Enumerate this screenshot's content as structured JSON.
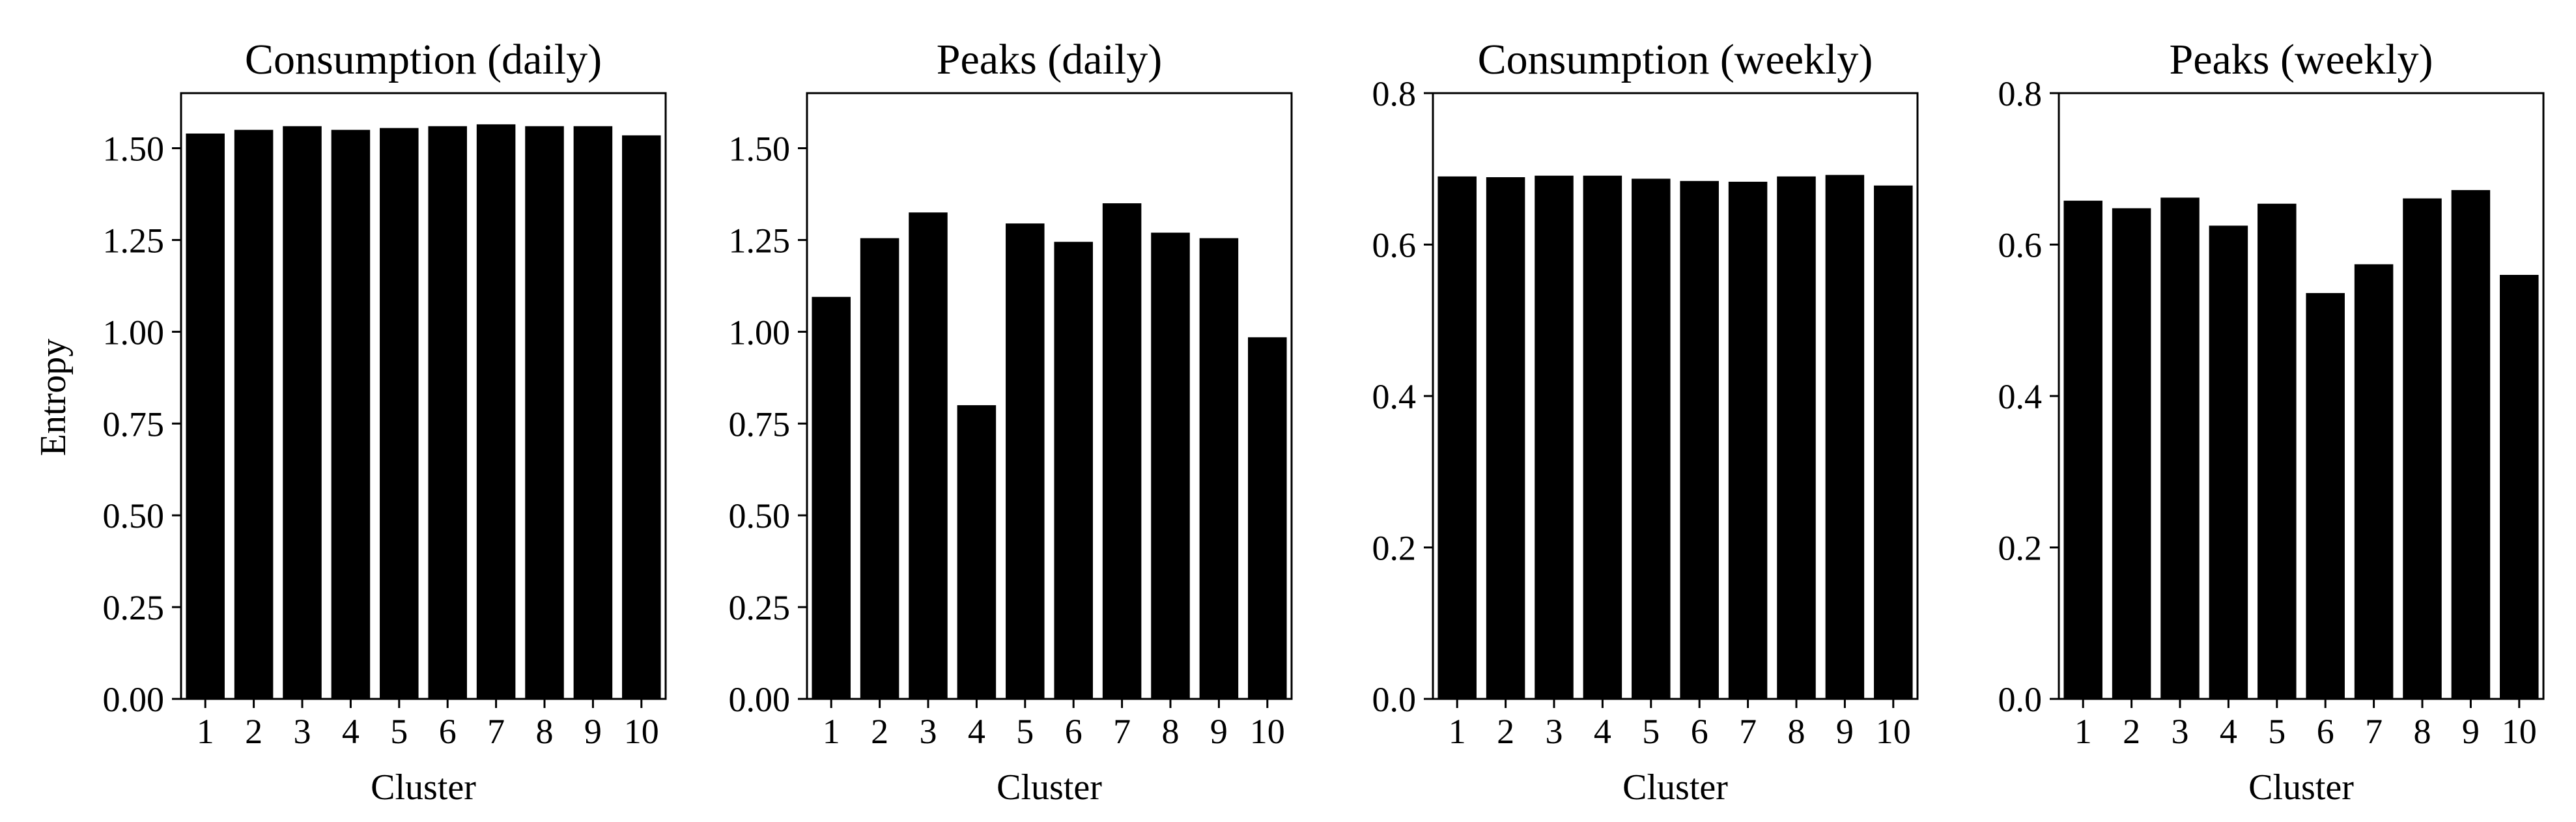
{
  "figure": {
    "ylabel": "Entropy",
    "bar_color": "#000000"
  },
  "chart_data": [
    {
      "type": "bar",
      "title": "Consumption (daily)",
      "xlabel": "Cluster",
      "ylabel": "Entropy",
      "categories": [
        "1",
        "2",
        "3",
        "4",
        "5",
        "6",
        "7",
        "8",
        "9",
        "10"
      ],
      "values": [
        1.54,
        1.55,
        1.56,
        1.55,
        1.555,
        1.56,
        1.565,
        1.56,
        1.56,
        1.535
      ],
      "ylim": [
        0,
        1.65
      ],
      "yticks": [
        0.0,
        0.25,
        0.5,
        0.75,
        1.0,
        1.25,
        1.5
      ],
      "ytick_labels": [
        "0.00",
        "0.25",
        "0.50",
        "0.75",
        "1.00",
        "1.25",
        "1.50"
      ]
    },
    {
      "type": "bar",
      "title": "Peaks (daily)",
      "xlabel": "Cluster",
      "ylabel": "",
      "categories": [
        "1",
        "2",
        "3",
        "4",
        "5",
        "6",
        "7",
        "8",
        "9",
        "10"
      ],
      "values": [
        1.095,
        1.255,
        1.325,
        0.8,
        1.295,
        1.245,
        1.35,
        1.27,
        1.255,
        0.985
      ],
      "ylim": [
        0,
        1.65
      ],
      "yticks": [
        0.0,
        0.25,
        0.5,
        0.75,
        1.0,
        1.25,
        1.5
      ],
      "ytick_labels": [
        "0.00",
        "0.25",
        "0.50",
        "0.75",
        "1.00",
        "1.25",
        "1.50"
      ]
    },
    {
      "type": "bar",
      "title": "Consumption (weekly)",
      "xlabel": "Cluster",
      "ylabel": "",
      "categories": [
        "1",
        "2",
        "3",
        "4",
        "5",
        "6",
        "7",
        "8",
        "9",
        "10"
      ],
      "values": [
        0.69,
        0.689,
        0.691,
        0.691,
        0.687,
        0.684,
        0.683,
        0.69,
        0.692,
        0.678
      ],
      "ylim": [
        0,
        0.8
      ],
      "yticks": [
        0.0,
        0.2,
        0.4,
        0.6,
        0.8
      ],
      "ytick_labels": [
        "0.0",
        "0.2",
        "0.4",
        "0.6",
        "0.8"
      ]
    },
    {
      "type": "bar",
      "title": "Peaks (weekly)",
      "xlabel": "Cluster",
      "ylabel": "",
      "categories": [
        "1",
        "2",
        "3",
        "4",
        "5",
        "6",
        "7",
        "8",
        "9",
        "10"
      ],
      "values": [
        0.658,
        0.648,
        0.662,
        0.625,
        0.654,
        0.536,
        0.574,
        0.661,
        0.672,
        0.56
      ],
      "ylim": [
        0,
        0.8
      ],
      "yticks": [
        0.0,
        0.2,
        0.4,
        0.6,
        0.8
      ],
      "ytick_labels": [
        "0.0",
        "0.2",
        "0.4",
        "0.6",
        "0.8"
      ]
    }
  ]
}
